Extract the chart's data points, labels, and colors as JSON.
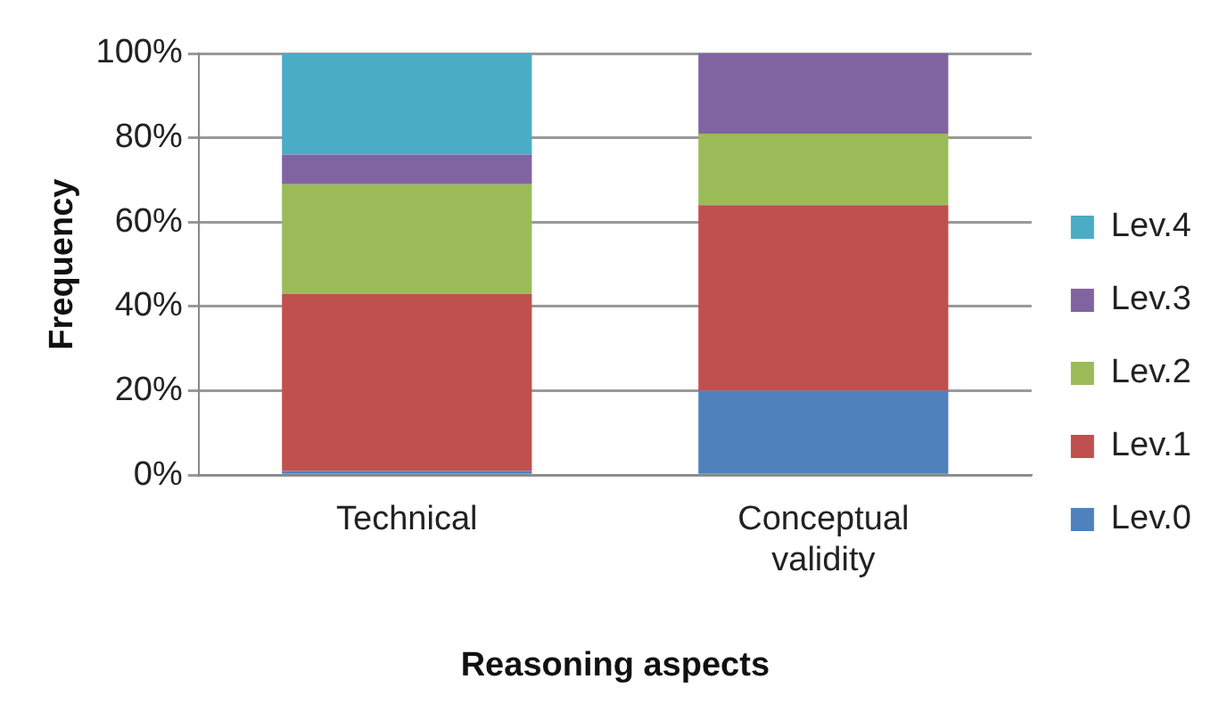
{
  "chart_data": {
    "type": "bar",
    "stacked": true,
    "xlabel": "Reasoning aspects",
    "ylabel": "Frequency",
    "categories": [
      "Technical",
      "Conceptual validity"
    ],
    "series": [
      {
        "name": "Lev.0",
        "color": "#4f81bd",
        "values": [
          1,
          20
        ]
      },
      {
        "name": "Lev.1",
        "color": "#c0504d",
        "values": [
          42,
          44
        ]
      },
      {
        "name": "Lev.2",
        "color": "#9bbb59",
        "values": [
          26,
          17
        ]
      },
      {
        "name": "Lev.3",
        "color": "#8064a2",
        "values": [
          7,
          19
        ]
      },
      {
        "name": "Lev.4",
        "color": "#4bacc6",
        "values": [
          24,
          0
        ]
      }
    ],
    "ylim": [
      0,
      100
    ],
    "yticks": [
      {
        "value": 0,
        "label": "0%"
      },
      {
        "value": 20,
        "label": "20%"
      },
      {
        "value": 40,
        "label": "40%"
      },
      {
        "value": 60,
        "label": "60%"
      },
      {
        "value": 80,
        "label": "80%"
      },
      {
        "value": 100,
        "label": "100%"
      }
    ],
    "grid": "y",
    "legend": "right"
  }
}
